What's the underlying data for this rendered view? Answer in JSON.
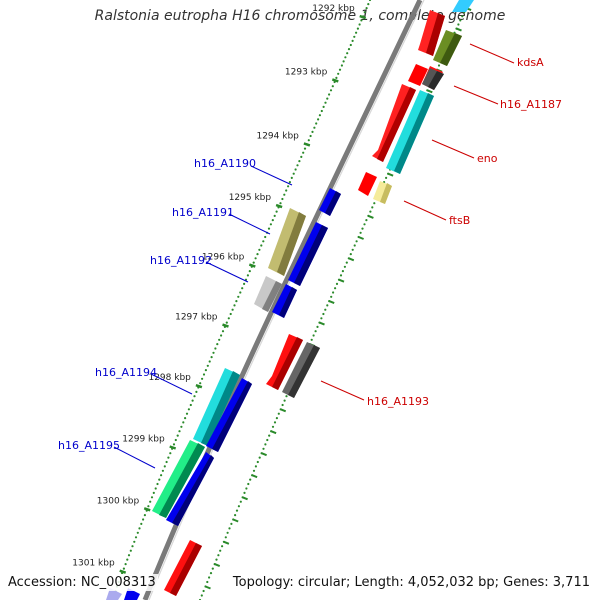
{
  "title": "Ralstonia eutropha H16 chromosome 1, complete genome",
  "footer": {
    "accession": "Accession: NC_008313",
    "topology": "Topology: circular; Length: 4,052,032 bp; Genes: 3,711"
  },
  "colors": {
    "backbone": "#7a7a7a",
    "tick": "#2a8a2a",
    "left_label": "#0000cc",
    "right_label": "#cc0000"
  },
  "ticks": [
    {
      "label": "1292 kbp",
      "t": 0.03
    },
    {
      "label": "1293 kbp",
      "t": 0.14
    },
    {
      "label": "1294 kbp",
      "t": 0.25
    },
    {
      "label": "1295 kbp",
      "t": 0.355
    },
    {
      "label": "1296 kbp",
      "t": 0.455
    },
    {
      "label": "1297 kbp",
      "t": 0.555
    },
    {
      "label": "1298 kbp",
      "t": 0.655
    },
    {
      "label": "1299 kbp",
      "t": 0.755
    },
    {
      "label": "1300 kbp",
      "t": 0.855
    },
    {
      "label": "1301 kbp",
      "t": 0.955
    }
  ],
  "genes": [
    {
      "name": "kdsA",
      "side": "right",
      "color": "#ff0000",
      "shade": "#aa0000"
    },
    {
      "name": "h16_A1187",
      "side": "right",
      "color": "#666666",
      "shade": "#333333"
    },
    {
      "name": "eno",
      "side": "right",
      "color": "#00cccc",
      "shade": "#007777"
    },
    {
      "name": "ftsB",
      "side": "right",
      "color": "#f0e68c",
      "shade": "#b8ad50"
    },
    {
      "name": "h16_A1190",
      "side": "left",
      "color": "#0000ff",
      "shade": "#00008a"
    },
    {
      "name": "h16_A1191",
      "side": "left",
      "color": "#bdb76b",
      "shade": "#7a753a"
    },
    {
      "name": "h16_A1192",
      "side": "left",
      "color": "#c0c0c0",
      "shade": "#808080"
    },
    {
      "name": "h16_A1193",
      "side": "right",
      "color": "#666666",
      "shade": "#333333"
    },
    {
      "name": "h16_A1194",
      "side": "left",
      "color": "#00cccc",
      "shade": "#007777"
    },
    {
      "name": "h16_A1195",
      "side": "left",
      "color": "#00ee88",
      "shade": "#008850"
    }
  ]
}
